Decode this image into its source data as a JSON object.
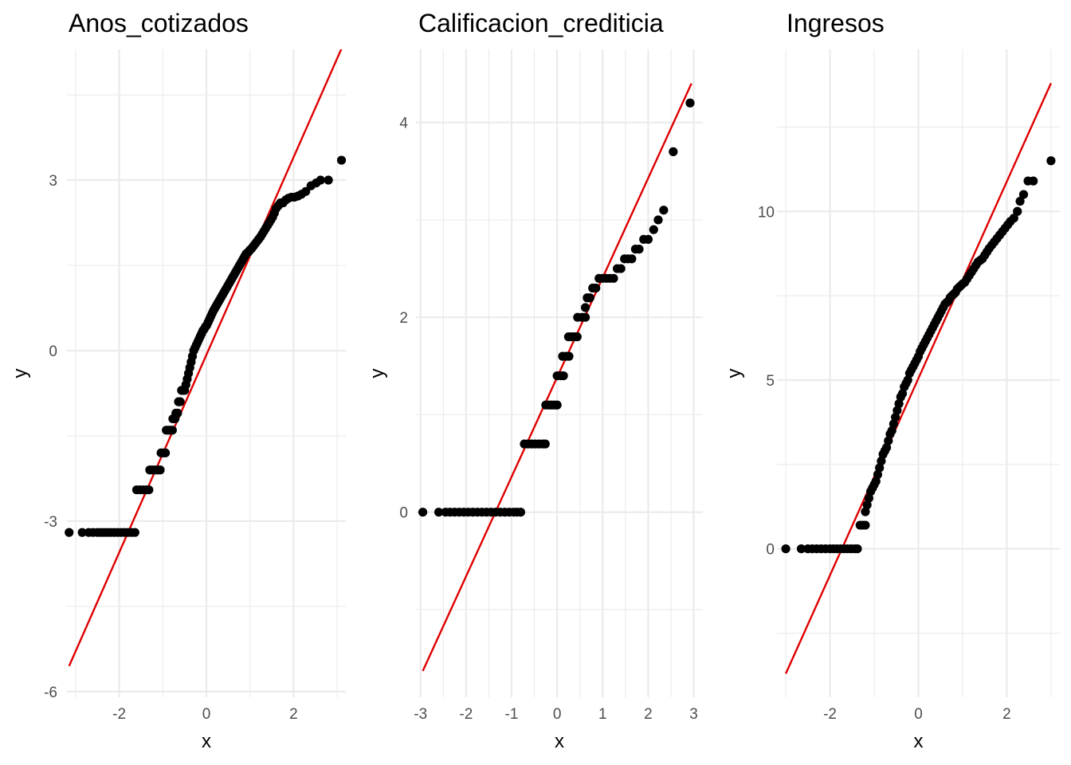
{
  "chart_data": [
    {
      "type": "scatter",
      "title": "Anos_cotizados",
      "xlabel": "x",
      "ylabel": "y",
      "xlim": [
        -3.2,
        3.2
      ],
      "ylim": [
        -6.1,
        5.3
      ],
      "x_ticks": [
        -2,
        0,
        2
      ],
      "x_tick_labels": [
        "-2",
        "0",
        "2"
      ],
      "y_ticks": [
        -6,
        -3,
        0,
        3
      ],
      "y_tick_labels": [
        "-6",
        "-3",
        "0",
        "3"
      ],
      "grid": true,
      "reference_line": {
        "color": "#e00000",
        "x": [
          -3.15,
          3.15
        ],
        "y": [
          -5.55,
          5.4
        ]
      },
      "points": [
        [
          -3.15,
          -3.2
        ],
        [
          -2.85,
          -3.2
        ],
        [
          -2.7,
          -3.2
        ],
        [
          -2.6,
          -3.2
        ],
        [
          -2.5,
          -3.2
        ],
        [
          -2.42,
          -3.2
        ],
        [
          -2.35,
          -3.2
        ],
        [
          -2.28,
          -3.2
        ],
        [
          -2.2,
          -3.2
        ],
        [
          -2.12,
          -3.2
        ],
        [
          -2.04,
          -3.2
        ],
        [
          -1.96,
          -3.2
        ],
        [
          -1.88,
          -3.2
        ],
        [
          -1.8,
          -3.2
        ],
        [
          -1.72,
          -3.2
        ],
        [
          -1.64,
          -3.2
        ],
        [
          -1.6,
          -2.45
        ],
        [
          -1.52,
          -2.45
        ],
        [
          -1.45,
          -2.45
        ],
        [
          -1.38,
          -2.45
        ],
        [
          -1.32,
          -2.45
        ],
        [
          -1.3,
          -2.1
        ],
        [
          -1.24,
          -2.1
        ],
        [
          -1.18,
          -2.1
        ],
        [
          -1.12,
          -2.1
        ],
        [
          -1.06,
          -2.1
        ],
        [
          -1.04,
          -1.8
        ],
        [
          -0.99,
          -1.8
        ],
        [
          -0.94,
          -1.8
        ],
        [
          -0.92,
          -1.4
        ],
        [
          -0.87,
          -1.4
        ],
        [
          -0.82,
          -1.4
        ],
        [
          -0.78,
          -1.4
        ],
        [
          -0.77,
          -1.2
        ],
        [
          -0.72,
          -1.2
        ],
        [
          -0.7,
          -1.1
        ],
        [
          -0.66,
          -1.1
        ],
        [
          -0.64,
          -0.9
        ],
        [
          -0.6,
          -0.9
        ],
        [
          -0.57,
          -0.7
        ],
        [
          -0.53,
          -0.7
        ],
        [
          -0.5,
          -0.7
        ],
        [
          -0.47,
          -0.6
        ],
        [
          -0.44,
          -0.5
        ],
        [
          -0.41,
          -0.4
        ],
        [
          -0.38,
          -0.3
        ],
        [
          -0.35,
          -0.2
        ],
        [
          -0.32,
          -0.1
        ],
        [
          -0.29,
          0.0
        ],
        [
          -0.26,
          0.05
        ],
        [
          -0.23,
          0.1
        ],
        [
          -0.2,
          0.15
        ],
        [
          -0.17,
          0.2
        ],
        [
          -0.14,
          0.25
        ],
        [
          -0.11,
          0.3
        ],
        [
          -0.08,
          0.35
        ],
        [
          -0.05,
          0.38
        ],
        [
          -0.02,
          0.42
        ],
        [
          0.01,
          0.45
        ],
        [
          0.04,
          0.5
        ],
        [
          0.07,
          0.55
        ],
        [
          0.1,
          0.6
        ],
        [
          0.13,
          0.65
        ],
        [
          0.16,
          0.7
        ],
        [
          0.19,
          0.74
        ],
        [
          0.22,
          0.78
        ],
        [
          0.25,
          0.82
        ],
        [
          0.28,
          0.86
        ],
        [
          0.31,
          0.9
        ],
        [
          0.34,
          0.94
        ],
        [
          0.37,
          0.98
        ],
        [
          0.4,
          1.02
        ],
        [
          0.43,
          1.06
        ],
        [
          0.46,
          1.1
        ],
        [
          0.49,
          1.14
        ],
        [
          0.52,
          1.18
        ],
        [
          0.55,
          1.22
        ],
        [
          0.58,
          1.26
        ],
        [
          0.61,
          1.3
        ],
        [
          0.64,
          1.34
        ],
        [
          0.67,
          1.38
        ],
        [
          0.7,
          1.42
        ],
        [
          0.73,
          1.46
        ],
        [
          0.76,
          1.5
        ],
        [
          0.79,
          1.54
        ],
        [
          0.82,
          1.58
        ],
        [
          0.85,
          1.62
        ],
        [
          0.88,
          1.66
        ],
        [
          0.91,
          1.7
        ],
        [
          0.94,
          1.72
        ],
        [
          0.97,
          1.74
        ],
        [
          1.0,
          1.77
        ],
        [
          1.04,
          1.8
        ],
        [
          1.08,
          1.84
        ],
        [
          1.12,
          1.88
        ],
        [
          1.16,
          1.92
        ],
        [
          1.2,
          1.96
        ],
        [
          1.24,
          2.0
        ],
        [
          1.28,
          2.05
        ],
        [
          1.32,
          2.1
        ],
        [
          1.36,
          2.15
        ],
        [
          1.4,
          2.2
        ],
        [
          1.44,
          2.25
        ],
        [
          1.48,
          2.3
        ],
        [
          1.52,
          2.35
        ],
        [
          1.56,
          2.42
        ],
        [
          1.6,
          2.5
        ],
        [
          1.65,
          2.55
        ],
        [
          1.7,
          2.6
        ],
        [
          1.76,
          2.6
        ],
        [
          1.82,
          2.65
        ],
        [
          1.88,
          2.68
        ],
        [
          1.95,
          2.7
        ],
        [
          2.02,
          2.7
        ],
        [
          2.1,
          2.72
        ],
        [
          2.18,
          2.75
        ],
        [
          2.28,
          2.8
        ],
        [
          2.4,
          2.9
        ],
        [
          2.52,
          2.95
        ],
        [
          2.62,
          3.0
        ],
        [
          2.8,
          3.0
        ],
        [
          3.1,
          3.35
        ]
      ]
    },
    {
      "type": "scatter",
      "title": "Calificacion_crediticia",
      "xlabel": "x",
      "ylabel": "y",
      "xlim": [
        -3.1,
        3.2
      ],
      "ylim": [
        -1.9,
        4.75
      ],
      "x_ticks": [
        -3,
        -2,
        -1,
        0,
        1,
        2,
        3
      ],
      "x_tick_labels": [
        "-3",
        "-2",
        "-1",
        "0",
        "1",
        "2",
        "3"
      ],
      "y_ticks": [
        0,
        2,
        4
      ],
      "y_tick_labels": [
        "0",
        "2",
        "4"
      ],
      "grid": true,
      "reference_line": {
        "color": "#e00000",
        "x": [
          -2.95,
          2.95
        ],
        "y": [
          -1.63,
          4.4
        ]
      },
      "points": [
        [
          -2.95,
          0
        ],
        [
          -2.6,
          0
        ],
        [
          -2.45,
          0
        ],
        [
          -2.35,
          0
        ],
        [
          -2.25,
          0
        ],
        [
          -2.15,
          0
        ],
        [
          -2.05,
          0
        ],
        [
          -1.95,
          0
        ],
        [
          -1.85,
          0
        ],
        [
          -1.75,
          0
        ],
        [
          -1.65,
          0
        ],
        [
          -1.55,
          0
        ],
        [
          -1.45,
          0
        ],
        [
          -1.35,
          0
        ],
        [
          -1.25,
          0
        ],
        [
          -1.15,
          0
        ],
        [
          -1.05,
          0
        ],
        [
          -0.95,
          0
        ],
        [
          -0.88,
          0
        ],
        [
          -0.8,
          0
        ],
        [
          -0.72,
          0.7
        ],
        [
          -0.64,
          0.7
        ],
        [
          -0.56,
          0.7
        ],
        [
          -0.48,
          0.7
        ],
        [
          -0.4,
          0.7
        ],
        [
          -0.32,
          0.7
        ],
        [
          -0.26,
          0.7
        ],
        [
          -0.25,
          1.1
        ],
        [
          -0.18,
          1.1
        ],
        [
          -0.12,
          1.1
        ],
        [
          -0.06,
          1.1
        ],
        [
          0.0,
          1.1
        ],
        [
          0.0,
          1.4
        ],
        [
          0.08,
          1.4
        ],
        [
          0.14,
          1.4
        ],
        [
          0.12,
          1.6
        ],
        [
          0.2,
          1.6
        ],
        [
          0.26,
          1.6
        ],
        [
          0.25,
          1.8
        ],
        [
          0.32,
          1.8
        ],
        [
          0.38,
          1.8
        ],
        [
          0.44,
          1.8
        ],
        [
          0.45,
          2.0
        ],
        [
          0.55,
          2.0
        ],
        [
          0.62,
          2.0
        ],
        [
          0.62,
          2.1
        ],
        [
          0.66,
          2.2
        ],
        [
          0.72,
          2.2
        ],
        [
          0.78,
          2.3
        ],
        [
          0.85,
          2.3
        ],
        [
          0.92,
          2.4
        ],
        [
          1.0,
          2.4
        ],
        [
          1.08,
          2.4
        ],
        [
          1.16,
          2.4
        ],
        [
          1.24,
          2.4
        ],
        [
          1.32,
          2.5
        ],
        [
          1.4,
          2.5
        ],
        [
          1.48,
          2.6
        ],
        [
          1.56,
          2.6
        ],
        [
          1.64,
          2.6
        ],
        [
          1.72,
          2.7
        ],
        [
          1.8,
          2.7
        ],
        [
          1.9,
          2.8
        ],
        [
          2.0,
          2.8
        ],
        [
          2.12,
          2.9
        ],
        [
          2.22,
          3.0
        ],
        [
          2.34,
          3.1
        ],
        [
          2.55,
          3.7
        ],
        [
          2.92,
          4.2
        ]
      ]
    },
    {
      "type": "scatter",
      "title": "Ingresos",
      "xlabel": "x",
      "ylabel": "y",
      "xlim": [
        -3.2,
        3.2
      ],
      "ylim": [
        -4.4,
        14.8
      ],
      "x_ticks": [
        -2,
        0,
        2
      ],
      "x_tick_labels": [
        "-2",
        "0",
        "2"
      ],
      "y_ticks": [
        0,
        5,
        10
      ],
      "y_tick_labels": [
        "0",
        "5",
        "10"
      ],
      "grid": true,
      "reference_line": {
        "color": "#e00000",
        "x": [
          -3.0,
          3.0
        ],
        "y": [
          -3.7,
          13.8
        ]
      },
      "points": [
        [
          -3.0,
          0
        ],
        [
          -2.65,
          0
        ],
        [
          -2.5,
          0
        ],
        [
          -2.4,
          0
        ],
        [
          -2.3,
          0
        ],
        [
          -2.2,
          0
        ],
        [
          -2.1,
          0
        ],
        [
          -2.0,
          0
        ],
        [
          -1.92,
          0
        ],
        [
          -1.84,
          0
        ],
        [
          -1.76,
          0
        ],
        [
          -1.68,
          0
        ],
        [
          -1.6,
          0
        ],
        [
          -1.52,
          0
        ],
        [
          -1.44,
          0
        ],
        [
          -1.38,
          0
        ],
        [
          -1.32,
          0.7
        ],
        [
          -1.26,
          0.7
        ],
        [
          -1.2,
          0.7
        ],
        [
          -1.2,
          1.1
        ],
        [
          -1.16,
          1.3
        ],
        [
          -1.12,
          1.5
        ],
        [
          -1.08,
          1.7
        ],
        [
          -1.04,
          1.8
        ],
        [
          -1.0,
          1.9
        ],
        [
          -0.96,
          2.0
        ],
        [
          -0.92,
          2.2
        ],
        [
          -0.88,
          2.4
        ],
        [
          -0.84,
          2.6
        ],
        [
          -0.8,
          2.8
        ],
        [
          -0.76,
          2.9
        ],
        [
          -0.72,
          3.0
        ],
        [
          -0.68,
          3.2
        ],
        [
          -0.64,
          3.4
        ],
        [
          -0.6,
          3.5
        ],
        [
          -0.56,
          3.7
        ],
        [
          -0.52,
          3.9
        ],
        [
          -0.48,
          4.1
        ],
        [
          -0.44,
          4.3
        ],
        [
          -0.4,
          4.5
        ],
        [
          -0.36,
          4.6
        ],
        [
          -0.32,
          4.8
        ],
        [
          -0.28,
          4.9
        ],
        [
          -0.24,
          5.0
        ],
        [
          -0.2,
          5.2
        ],
        [
          -0.16,
          5.3
        ],
        [
          -0.12,
          5.4
        ],
        [
          -0.08,
          5.5
        ],
        [
          -0.04,
          5.6
        ],
        [
          0.0,
          5.7
        ],
        [
          0.04,
          5.85
        ],
        [
          0.08,
          5.95
        ],
        [
          0.12,
          6.05
        ],
        [
          0.16,
          6.15
        ],
        [
          0.2,
          6.25
        ],
        [
          0.24,
          6.35
        ],
        [
          0.28,
          6.45
        ],
        [
          0.32,
          6.55
        ],
        [
          0.36,
          6.65
        ],
        [
          0.4,
          6.75
        ],
        [
          0.44,
          6.85
        ],
        [
          0.48,
          6.95
        ],
        [
          0.52,
          7.05
        ],
        [
          0.56,
          7.15
        ],
        [
          0.6,
          7.25
        ],
        [
          0.64,
          7.3
        ],
        [
          0.68,
          7.35
        ],
        [
          0.72,
          7.45
        ],
        [
          0.76,
          7.5
        ],
        [
          0.8,
          7.55
        ],
        [
          0.84,
          7.6
        ],
        [
          0.88,
          7.7
        ],
        [
          0.92,
          7.75
        ],
        [
          0.96,
          7.8
        ],
        [
          1.0,
          7.85
        ],
        [
          1.05,
          7.9
        ],
        [
          1.1,
          8.0
        ],
        [
          1.15,
          8.1
        ],
        [
          1.2,
          8.2
        ],
        [
          1.25,
          8.3
        ],
        [
          1.3,
          8.4
        ],
        [
          1.35,
          8.5
        ],
        [
          1.4,
          8.55
        ],
        [
          1.45,
          8.6
        ],
        [
          1.5,
          8.7
        ],
        [
          1.55,
          8.8
        ],
        [
          1.6,
          8.9
        ],
        [
          1.66,
          9.0
        ],
        [
          1.72,
          9.1
        ],
        [
          1.78,
          9.2
        ],
        [
          1.84,
          9.3
        ],
        [
          1.9,
          9.4
        ],
        [
          1.96,
          9.5
        ],
        [
          2.02,
          9.6
        ],
        [
          2.08,
          9.7
        ],
        [
          2.16,
          9.8
        ],
        [
          2.24,
          10.0
        ],
        [
          2.3,
          10.3
        ],
        [
          2.38,
          10.5
        ],
        [
          2.48,
          10.9
        ],
        [
          2.6,
          10.9
        ],
        [
          3.0,
          11.5
        ]
      ]
    }
  ]
}
